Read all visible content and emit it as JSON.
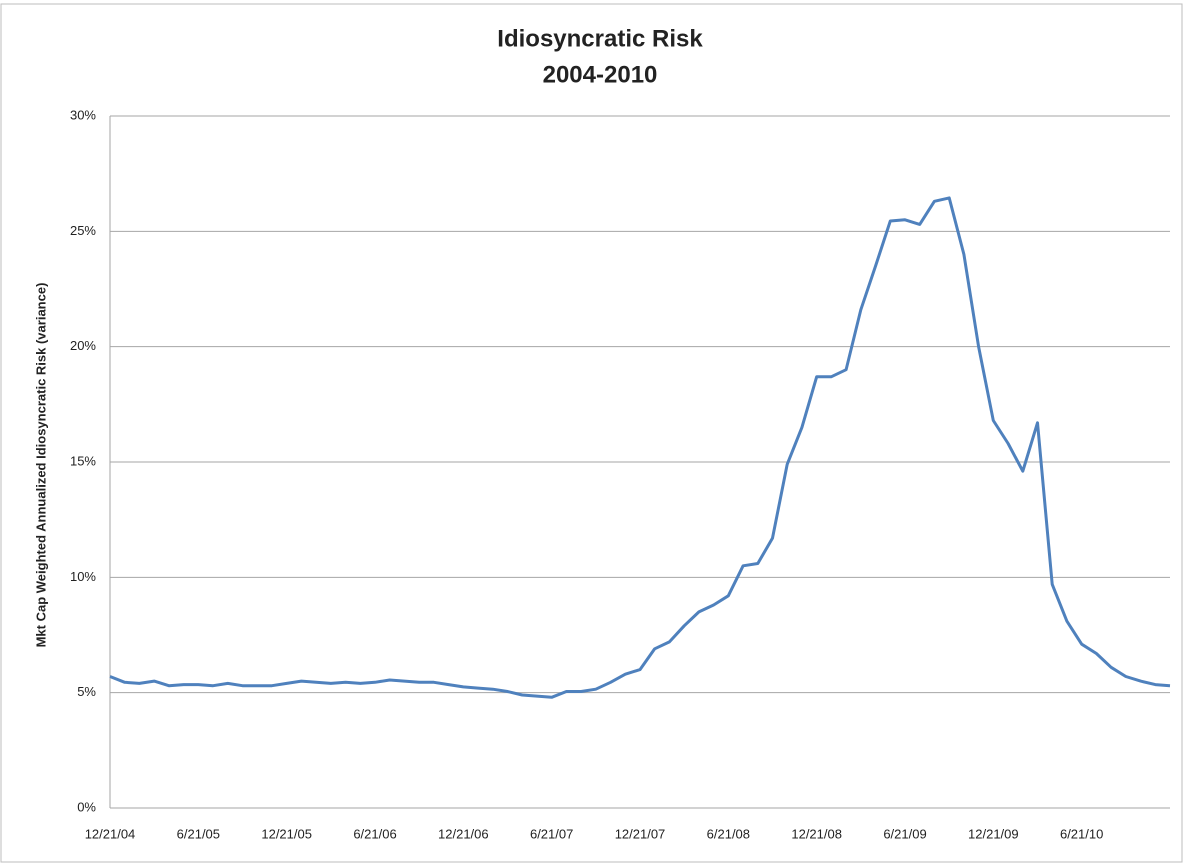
{
  "chart_data": {
    "type": "line",
    "title": "Idiosyncratic Risk",
    "subtitle": "2004-2010",
    "y_label": "Mkt Cap Weighted Annualized Idiosyncratic Risk (variance)",
    "categories": [
      "12/21/04",
      null,
      null,
      null,
      null,
      null,
      "6/21/05",
      null,
      null,
      null,
      null,
      null,
      "12/21/05",
      null,
      null,
      null,
      null,
      null,
      "6/21/06",
      null,
      null,
      null,
      null,
      null,
      "12/21/06",
      null,
      null,
      null,
      null,
      null,
      "6/21/07",
      null,
      null,
      null,
      null,
      null,
      "12/21/07",
      null,
      null,
      null,
      null,
      null,
      "6/21/08",
      null,
      null,
      null,
      null,
      null,
      "12/21/08",
      null,
      null,
      null,
      null,
      null,
      "6/21/09",
      null,
      null,
      null,
      null,
      null,
      "12/21/09",
      null,
      null,
      null,
      null,
      null,
      "6/21/10",
      null,
      null,
      null,
      null,
      null,
      null
    ],
    "series": [
      {
        "name": "Idiosyncratic Risk",
        "color": "#4f81bd",
        "values": [
          5.7,
          5.45,
          5.4,
          5.5,
          5.3,
          5.35,
          5.35,
          5.3,
          5.4,
          5.3,
          5.3,
          5.3,
          5.4,
          5.5,
          5.45,
          5.4,
          5.45,
          5.4,
          5.45,
          5.55,
          5.5,
          5.45,
          5.45,
          5.35,
          5.25,
          5.2,
          5.15,
          5.05,
          4.9,
          4.85,
          4.8,
          5.05,
          5.05,
          5.15,
          5.45,
          5.8,
          6.0,
          6.9,
          7.2,
          7.9,
          8.5,
          8.8,
          9.2,
          10.5,
          10.6,
          11.7,
          14.9,
          16.5,
          18.7,
          18.7,
          19.0,
          21.6,
          23.5,
          25.45,
          25.5,
          25.3,
          26.3,
          26.45,
          24.0,
          20.0,
          16.8,
          15.8,
          14.6,
          16.7,
          9.7,
          8.1,
          7.1,
          6.7,
          6.1,
          5.7,
          5.5,
          5.35,
          5.3
        ]
      }
    ],
    "ylim": [
      0,
      30
    ],
    "yticks": [
      {
        "value": 0,
        "label": "0%"
      },
      {
        "value": 5,
        "label": "5%"
      },
      {
        "value": 10,
        "label": "10%"
      },
      {
        "value": 15,
        "label": "15%"
      },
      {
        "value": 20,
        "label": "20%"
      },
      {
        "value": 25,
        "label": "25%"
      },
      {
        "value": 30,
        "label": "30%"
      }
    ],
    "grid": true
  }
}
